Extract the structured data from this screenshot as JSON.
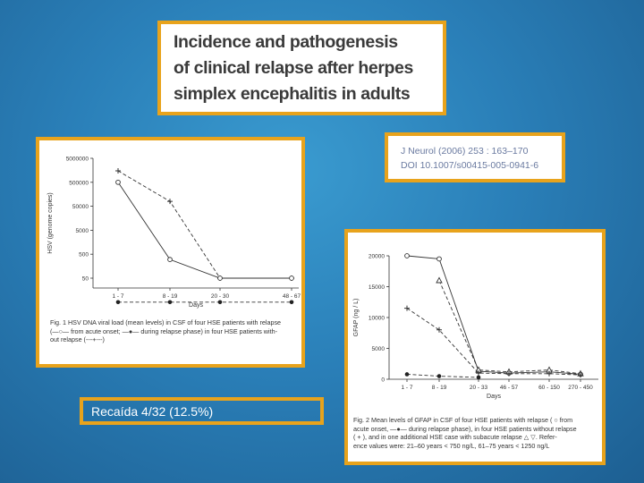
{
  "title": {
    "lines": [
      "Incidence and pathogenesis",
      "of clinical relapse after herpes",
      "simplex encephalitis in adults"
    ]
  },
  "citation": {
    "journal": "J Neurol (2006) 253 : 163–170",
    "doi": "DOI 10.1007/s00415-005-0941-6"
  },
  "relapse_note": "Recaída 4/32 (12.5%)",
  "figure1": {
    "caption_lines": [
      "Fig. 1  HSV DNA viral load (mean levels) in CSF of four HSE patients with relapse",
      "(—○— from acute onset; —●— during relapse phase) in four HSE patients with-",
      "out relapse (---+---)"
    ],
    "chart_data": {
      "type": "line",
      "xlabel": "Days",
      "ylabel": "HSV (genome copies)",
      "categories": [
        "1 - 7",
        "8 - 19",
        "20 - 30",
        "48 - 67"
      ],
      "y_ticks": [
        "5000000",
        "500000",
        "50000",
        "5000",
        "500",
        "50"
      ],
      "series": [
        {
          "marker": "cross",
          "style": "dashed",
          "values": [
            1500000,
            80000,
            50,
            50
          ]
        },
        {
          "marker": "open-circle",
          "style": "solid",
          "values": [
            500000,
            300,
            50,
            50
          ]
        },
        {
          "marker": "filled-circle",
          "style": "dashed",
          "values": [
            5,
            5,
            5,
            5
          ]
        }
      ],
      "y_scale": "log"
    }
  },
  "figure2": {
    "caption_lines": [
      "Fig. 2  Mean levels of GFAP in CSF of four HSE patients with relapse (  ○  from",
      "acute onset, —●— during relapse phase), in four HSE patients without relapse",
      "(  +  ), and in one additional HSE case with subacute relapse △  ▽. Refer-",
      "ence values were: 21–60 years < 750 ng/L, 61–75 years < 1250 ng/L"
    ],
    "chart_data": {
      "type": "line",
      "xlabel": "Days",
      "ylabel": "GFAP (ng / L)",
      "categories": [
        "1 - 7",
        "8 - 19",
        "20 - 33",
        "46 - 57",
        "60 - 150",
        "270 - 450"
      ],
      "y_ticks": [
        "20000",
        "15000",
        "10000",
        "5000",
        "0"
      ],
      "ylim": [
        0,
        20000
      ],
      "series": [
        {
          "marker": "open-circle",
          "style": "solid",
          "values": [
            20000,
            19500,
            1300,
            1000,
            1200,
            800
          ]
        },
        {
          "marker": "triangle",
          "style": "dashed",
          "values": [
            null,
            16000,
            1500,
            1200,
            1500,
            900
          ]
        },
        {
          "marker": "cross",
          "style": "dashed",
          "values": [
            11500,
            8000,
            1000,
            900,
            900,
            700
          ]
        },
        {
          "marker": "filled-circle",
          "style": "dashed",
          "values": [
            800,
            500,
            300,
            null,
            null,
            null
          ]
        }
      ]
    }
  }
}
